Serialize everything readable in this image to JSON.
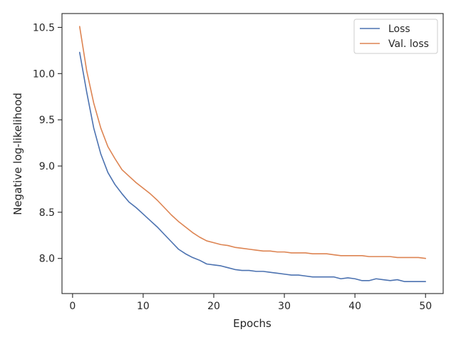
{
  "chart_data": {
    "type": "line",
    "xlabel": "Epochs",
    "ylabel": "Negative log-likelihood",
    "xlim": [
      -1.5,
      52.5
    ],
    "ylim": [
      7.62,
      10.65
    ],
    "xticks": [
      0,
      10,
      20,
      30,
      40,
      50
    ],
    "yticks": [
      8.0,
      8.5,
      9.0,
      9.5,
      10.0,
      10.5
    ],
    "xtick_labels": [
      "0",
      "10",
      "20",
      "30",
      "40",
      "50"
    ],
    "ytick_labels": [
      "8.0",
      "8.5",
      "9.0",
      "9.5",
      "10.0",
      "10.5"
    ],
    "grid": false,
    "legend_position": "top-right",
    "x": [
      1,
      2,
      3,
      4,
      5,
      6,
      7,
      8,
      9,
      10,
      11,
      12,
      13,
      14,
      15,
      16,
      17,
      18,
      19,
      20,
      21,
      22,
      23,
      24,
      25,
      26,
      27,
      28,
      29,
      30,
      31,
      32,
      33,
      34,
      35,
      36,
      37,
      38,
      39,
      40,
      41,
      42,
      43,
      44,
      45,
      46,
      47,
      48,
      49,
      50
    ],
    "series": [
      {
        "name": "Loss",
        "color": "#4c72b0",
        "values": [
          10.23,
          9.8,
          9.41,
          9.13,
          8.93,
          8.8,
          8.7,
          8.61,
          8.55,
          8.48,
          8.41,
          8.34,
          8.26,
          8.18,
          8.1,
          8.05,
          8.01,
          7.98,
          7.94,
          7.93,
          7.92,
          7.9,
          7.88,
          7.87,
          7.87,
          7.86,
          7.86,
          7.85,
          7.84,
          7.83,
          7.82,
          7.82,
          7.81,
          7.8,
          7.8,
          7.8,
          7.8,
          7.78,
          7.79,
          7.78,
          7.76,
          7.76,
          7.78,
          7.77,
          7.76,
          7.77,
          7.75,
          7.75,
          7.75,
          7.75
        ]
      },
      {
        "name": "Val. loss",
        "color": "#dd8452",
        "values": [
          10.51,
          10.03,
          9.68,
          9.41,
          9.21,
          9.08,
          8.96,
          8.89,
          8.82,
          8.76,
          8.7,
          8.63,
          8.55,
          8.47,
          8.4,
          8.34,
          8.28,
          8.23,
          8.19,
          8.17,
          8.15,
          8.14,
          8.12,
          8.11,
          8.1,
          8.09,
          8.08,
          8.08,
          8.07,
          8.07,
          8.06,
          8.06,
          8.06,
          8.05,
          8.05,
          8.05,
          8.04,
          8.03,
          8.03,
          8.03,
          8.03,
          8.02,
          8.02,
          8.02,
          8.02,
          8.01,
          8.01,
          8.01,
          8.01,
          8.0
        ]
      }
    ]
  }
}
